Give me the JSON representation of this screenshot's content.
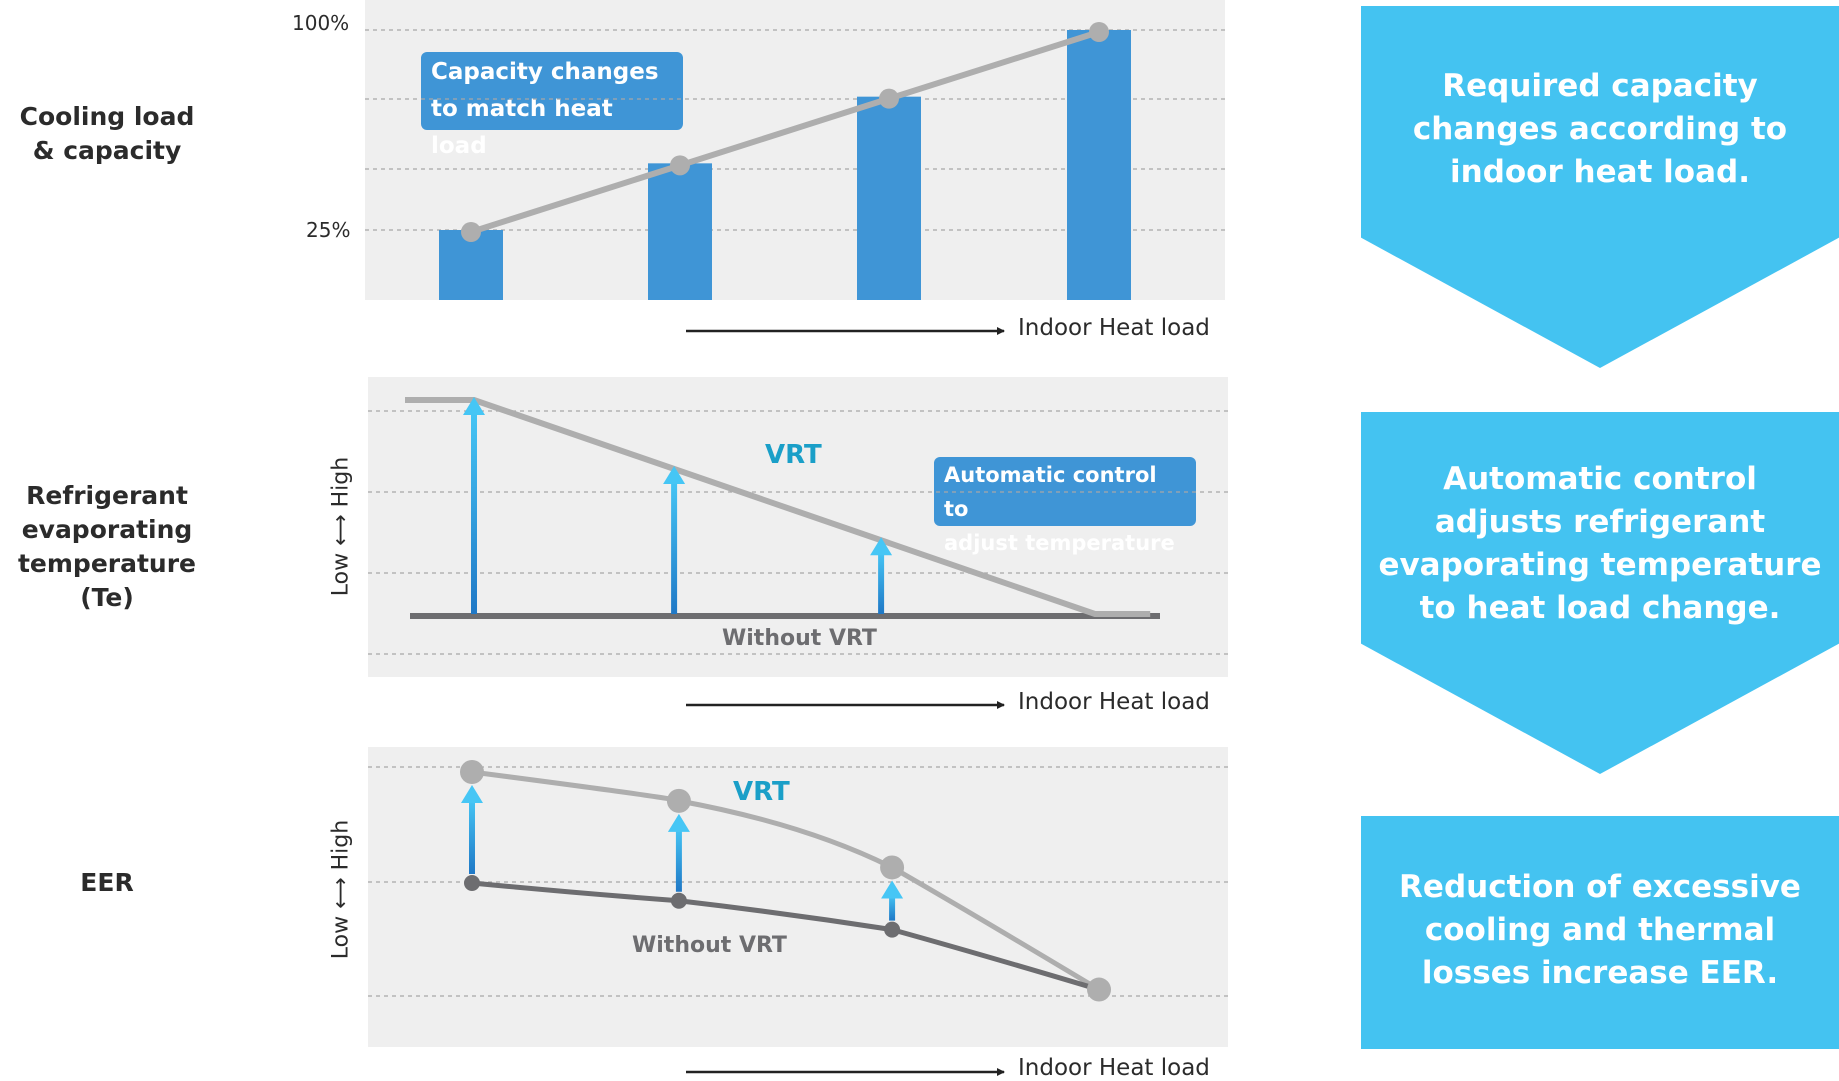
{
  "colors": {
    "bar": "#3f95d6",
    "capacity_line": "#aeaeae",
    "without_line": "#6d6d70",
    "panel_bg": "#efefef",
    "callout_bg": "#3f95d6",
    "vrt_text": "#1a9fc8",
    "info_box": "#44c3f1",
    "arrow_top": "#46c6f5",
    "arrow_bottom": "#1f78c6"
  },
  "rows": [
    {
      "label": "Cooling load\n& capacity"
    },
    {
      "label": "Refrigerant\nevaporating\ntemperature (Te)"
    },
    {
      "label": "EER"
    }
  ],
  "info_boxes": [
    {
      "text": "Required capacity\nchanges according to\nindoor heat load."
    },
    {
      "text": "Automatic control\nadjusts refrigerant\nevaporating temperature\nto heat load change."
    },
    {
      "text": "Reduction of excessive\ncooling and thermal\nlosses increase EER."
    }
  ],
  "chart_data": [
    {
      "type": "bar",
      "categories": [
        "",
        "",
        "",
        ""
      ],
      "values": [
        25,
        50,
        75,
        100
      ],
      "line_values": [
        25,
        50,
        75,
        100
      ],
      "y_ticks": [
        "100%",
        "25%"
      ],
      "xlabel": "Indoor Heat load",
      "callout": "Capacity changes\nto match heat load",
      "grid": true
    },
    {
      "type": "line",
      "series": [
        {
          "name": "VRT",
          "x": [
            0,
            0.1,
            1.0,
            1.08
          ],
          "values": [
            1.0,
            1.0,
            0.0,
            0.0
          ]
        },
        {
          "name": "Without VRT",
          "x": [
            0,
            1.08
          ],
          "values": [
            0,
            0
          ]
        }
      ],
      "arrow_x": [
        0.1,
        0.39,
        0.69
      ],
      "y_axis": {
        "low": "Low",
        "high": "High"
      },
      "xlabel": "Indoor Heat load",
      "callout": "Automatic control to\nadjust temperature",
      "grid": true
    },
    {
      "type": "line",
      "series": [
        {
          "name": "VRT",
          "x": [
            0,
            0.33,
            0.67,
            1.0
          ],
          "values": [
            1.0,
            0.87,
            0.57,
            0.02
          ]
        },
        {
          "name": "Without VRT",
          "x": [
            0,
            0.33,
            0.67,
            1.0
          ],
          "values": [
            0.5,
            0.42,
            0.29,
            0.02
          ]
        }
      ],
      "y_axis": {
        "low": "Low",
        "high": "High"
      },
      "xlabel": "Indoor Heat load",
      "grid": true
    }
  ]
}
